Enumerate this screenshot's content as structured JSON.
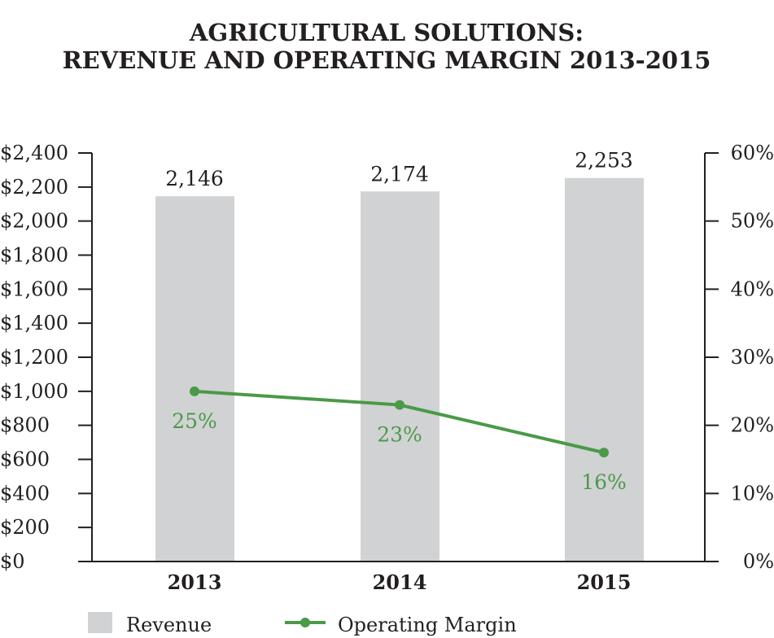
{
  "chart_data": {
    "type": "bar",
    "title": [
      "AGRICULTURAL SOLUTIONS:",
      "REVENUE AND OPERATING MARGIN 2013-2015"
    ],
    "categories": [
      "2013",
      "2014",
      "2015"
    ],
    "series": [
      {
        "name": "Revenue",
        "type": "bar",
        "axis": "left",
        "values": [
          2146,
          2174,
          2253
        ],
        "labels": [
          "2,146",
          "2,174",
          "2,253"
        ],
        "color": "#d1d2d4"
      },
      {
        "name": "Operating Margin",
        "type": "line",
        "axis": "right",
        "values": [
          25,
          23,
          16
        ],
        "labels": [
          "25%",
          "23%",
          "16%"
        ],
        "color": "#4a9a48"
      }
    ],
    "ylim": [
      0,
      2400
    ],
    "y2lim": [
      0,
      60
    ],
    "yticks": [
      "$0",
      "$200",
      "$400",
      "$600",
      "$800",
      "$1,000",
      "$1,200",
      "$1,400",
      "$1,600",
      "$1,800",
      "$2,000",
      "$2,200",
      "$2,400"
    ],
    "y2ticks": [
      "0%",
      "10%",
      "20%",
      "30%",
      "40%",
      "50%",
      "60%"
    ],
    "legend": {
      "placement": "bottom-left",
      "entries": [
        "Revenue",
        "Operating Margin"
      ]
    }
  }
}
